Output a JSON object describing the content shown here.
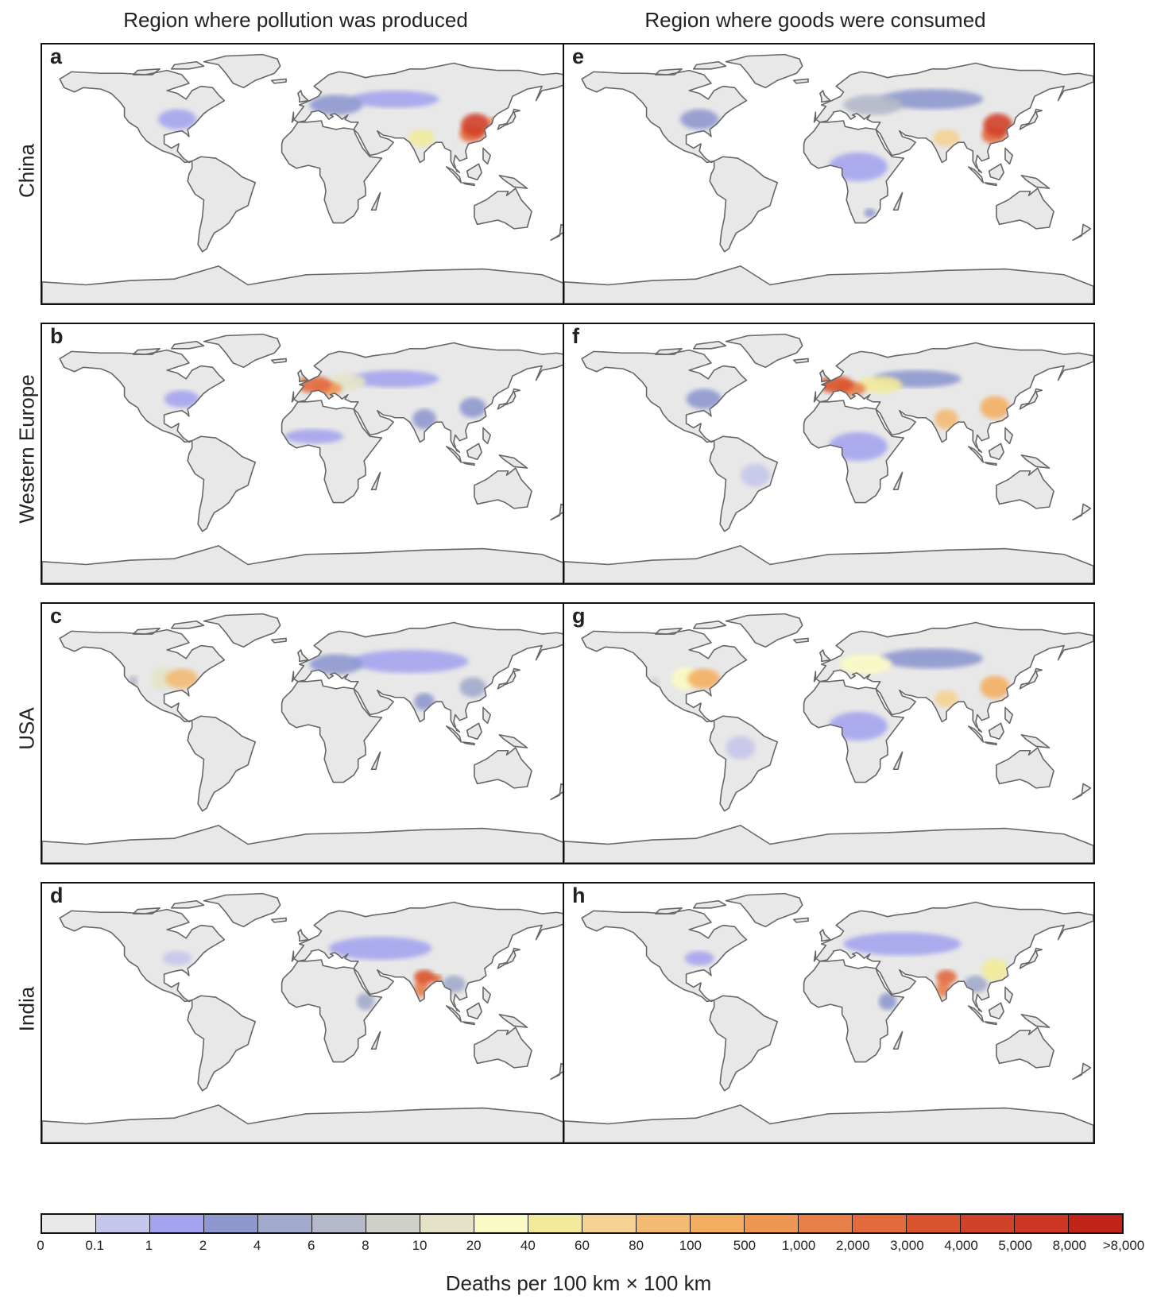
{
  "column_headers": [
    "Region where pollution was produced",
    "Region where goods were consumed"
  ],
  "row_labels": [
    "China",
    "Western Europe",
    "USA",
    "India"
  ],
  "panels": [
    {
      "letter": "a",
      "region": "China",
      "view": "produced",
      "hotspots": [
        {
          "lon": 115,
          "lat": 34,
          "rx": 10,
          "ry": 8,
          "level": 17
        },
        {
          "lon": 112,
          "lat": 28,
          "rx": 8,
          "ry": 6,
          "level": 15
        },
        {
          "lon": 127,
          "lat": 37,
          "rx": 3,
          "ry": 3,
          "level": 13
        },
        {
          "lon": 78,
          "lat": 25,
          "rx": 9,
          "ry": 6,
          "level": 9
        },
        {
          "lon": 20,
          "lat": 48,
          "rx": 18,
          "ry": 7,
          "level": 3
        },
        {
          "lon": 60,
          "lat": 52,
          "rx": 30,
          "ry": 6,
          "level": 2
        },
        {
          "lon": -88,
          "lat": 38,
          "rx": 13,
          "ry": 7,
          "level": 2
        }
      ]
    },
    {
      "letter": "b",
      "region": "Western Europe",
      "view": "produced",
      "hotspots": [
        {
          "lon": 5,
          "lat": 48,
          "rx": 12,
          "ry": 6,
          "level": 15
        },
        {
          "lon": 14,
          "lat": 45,
          "rx": 10,
          "ry": 5,
          "level": 13
        },
        {
          "lon": 28,
          "lat": 50,
          "rx": 12,
          "ry": 6,
          "level": 7
        },
        {
          "lon": 60,
          "lat": 52,
          "rx": 30,
          "ry": 6,
          "level": 2
        },
        {
          "lon": 80,
          "lat": 24,
          "rx": 8,
          "ry": 7,
          "level": 3
        },
        {
          "lon": 113,
          "lat": 32,
          "rx": 9,
          "ry": 7,
          "level": 3
        },
        {
          "lon": 5,
          "lat": 12,
          "rx": 20,
          "ry": 5,
          "level": 2
        },
        {
          "lon": -85,
          "lat": 38,
          "rx": 12,
          "ry": 6,
          "level": 2
        }
      ]
    },
    {
      "letter": "c",
      "region": "USA",
      "view": "produced",
      "hotspots": [
        {
          "lon": -85,
          "lat": 38,
          "rx": 11,
          "ry": 7,
          "level": 11
        },
        {
          "lon": -98,
          "lat": 38,
          "rx": 8,
          "ry": 8,
          "level": 7
        },
        {
          "lon": -118,
          "lat": 36,
          "rx": 3,
          "ry": 4,
          "level": 5
        },
        {
          "lon": 20,
          "lat": 48,
          "rx": 18,
          "ry": 7,
          "level": 3
        },
        {
          "lon": 70,
          "lat": 50,
          "rx": 40,
          "ry": 8,
          "level": 2
        },
        {
          "lon": 113,
          "lat": 32,
          "rx": 9,
          "ry": 7,
          "level": 4
        },
        {
          "lon": 80,
          "lat": 22,
          "rx": 7,
          "ry": 6,
          "level": 3
        }
      ]
    },
    {
      "letter": "d",
      "region": "India",
      "view": "produced",
      "hotspots": [
        {
          "lon": 80,
          "lat": 25,
          "rx": 7,
          "ry": 5,
          "level": 16
        },
        {
          "lon": 78,
          "lat": 17,
          "rx": 5,
          "ry": 6,
          "level": 14
        },
        {
          "lon": 88,
          "lat": 24,
          "rx": 4,
          "ry": 3,
          "level": 15
        },
        {
          "lon": 100,
          "lat": 20,
          "rx": 8,
          "ry": 6,
          "level": 4
        },
        {
          "lon": 40,
          "lat": 8,
          "rx": 6,
          "ry": 6,
          "level": 4
        },
        {
          "lon": 50,
          "lat": 45,
          "rx": 35,
          "ry": 8,
          "level": 2
        },
        {
          "lon": -88,
          "lat": 38,
          "rx": 10,
          "ry": 5,
          "level": 1
        }
      ]
    },
    {
      "letter": "e",
      "region": "China",
      "view": "consumed",
      "hotspots": [
        {
          "lon": 115,
          "lat": 34,
          "rx": 10,
          "ry": 8,
          "level": 17
        },
        {
          "lon": 112,
          "lat": 27,
          "rx": 8,
          "ry": 6,
          "level": 15
        },
        {
          "lon": 80,
          "lat": 25,
          "rx": 9,
          "ry": 6,
          "level": 10
        },
        {
          "lon": 30,
          "lat": 48,
          "rx": 20,
          "ry": 7,
          "level": 5
        },
        {
          "lon": 70,
          "lat": 52,
          "rx": 35,
          "ry": 7,
          "level": 3
        },
        {
          "lon": -88,
          "lat": 38,
          "rx": 13,
          "ry": 7,
          "level": 3
        },
        {
          "lon": 20,
          "lat": 5,
          "rx": 20,
          "ry": 10,
          "level": 2
        },
        {
          "lon": 28,
          "lat": -27,
          "rx": 4,
          "ry": 3,
          "level": 3
        }
      ]
    },
    {
      "letter": "f",
      "region": "Western Europe",
      "view": "consumed",
      "hotspots": [
        {
          "lon": 5,
          "lat": 48,
          "rx": 12,
          "ry": 6,
          "level": 16
        },
        {
          "lon": 15,
          "lat": 45,
          "rx": 10,
          "ry": 5,
          "level": 14
        },
        {
          "lon": 35,
          "lat": 48,
          "rx": 15,
          "ry": 6,
          "level": 9
        },
        {
          "lon": 80,
          "lat": 24,
          "rx": 8,
          "ry": 7,
          "level": 11
        },
        {
          "lon": 113,
          "lat": 32,
          "rx": 10,
          "ry": 8,
          "level": 12
        },
        {
          "lon": 60,
          "lat": 52,
          "rx": 30,
          "ry": 6,
          "level": 3
        },
        {
          "lon": -85,
          "lat": 38,
          "rx": 12,
          "ry": 7,
          "level": 3
        },
        {
          "lon": 20,
          "lat": 5,
          "rx": 20,
          "ry": 10,
          "level": 2
        },
        {
          "lon": -50,
          "lat": -15,
          "rx": 10,
          "ry": 8,
          "level": 1
        }
      ]
    },
    {
      "letter": "g",
      "region": "USA",
      "view": "consumed",
      "hotspots": [
        {
          "lon": -85,
          "lat": 38,
          "rx": 11,
          "ry": 7,
          "level": 12
        },
        {
          "lon": -98,
          "lat": 38,
          "rx": 9,
          "ry": 8,
          "level": 8
        },
        {
          "lon": -118,
          "lat": 35,
          "rx": 3,
          "ry": 4,
          "level": 6
        },
        {
          "lon": 113,
          "lat": 32,
          "rx": 10,
          "ry": 8,
          "level": 12
        },
        {
          "lon": 80,
          "lat": 24,
          "rx": 8,
          "ry": 6,
          "level": 10
        },
        {
          "lon": 25,
          "lat": 48,
          "rx": 18,
          "ry": 7,
          "level": 8
        },
        {
          "lon": 70,
          "lat": 52,
          "rx": 35,
          "ry": 7,
          "level": 3
        },
        {
          "lon": 20,
          "lat": 5,
          "rx": 20,
          "ry": 10,
          "level": 2
        },
        {
          "lon": -60,
          "lat": -10,
          "rx": 10,
          "ry": 8,
          "level": 1
        }
      ]
    },
    {
      "letter": "h",
      "region": "India",
      "view": "consumed",
      "hotspots": [
        {
          "lon": 80,
          "lat": 25,
          "rx": 7,
          "ry": 5,
          "level": 15
        },
        {
          "lon": 78,
          "lat": 17,
          "rx": 5,
          "ry": 6,
          "level": 14
        },
        {
          "lon": 113,
          "lat": 30,
          "rx": 9,
          "ry": 8,
          "level": 9
        },
        {
          "lon": 100,
          "lat": 20,
          "rx": 8,
          "ry": 6,
          "level": 4
        },
        {
          "lon": 40,
          "lat": 8,
          "rx": 6,
          "ry": 6,
          "level": 3
        },
        {
          "lon": 50,
          "lat": 48,
          "rx": 40,
          "ry": 8,
          "level": 2
        },
        {
          "lon": -88,
          "lat": 38,
          "rx": 10,
          "ry": 5,
          "level": 2
        }
      ]
    }
  ],
  "colorbar": {
    "title": "Deaths per 100 km × 100 km",
    "ticks": [
      "0",
      "0.1",
      "1",
      "2",
      "4",
      "6",
      "8",
      "10",
      "20",
      "40",
      "60",
      "80",
      "100",
      "500",
      "1,000",
      "2,000",
      "3,000",
      "4,000",
      "5,000",
      "8,000",
      ">8,000"
    ],
    "colors": [
      "#e8e8e8",
      "#c6c6ea",
      "#a4a4ee",
      "#8e98cf",
      "#a2aacb",
      "#b4b8c8",
      "#cfd0ca",
      "#e4e3c8",
      "#fafac4",
      "#f2ea9a",
      "#f5d292",
      "#f2ba72",
      "#f3ae62",
      "#ee9654",
      "#e87e48",
      "#e26a3c",
      "#d9532c",
      "#d1422a",
      "#cc3624",
      "#c02418"
    ]
  },
  "map_colors": {
    "land": "#e8e8e8",
    "coast": "#666666",
    "ocean": "#ffffff"
  }
}
